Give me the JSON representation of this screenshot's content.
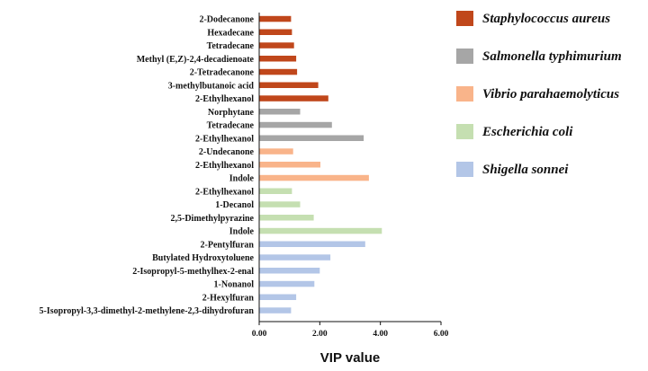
{
  "chart_data": {
    "type": "bar",
    "orientation": "horizontal",
    "xlabel": "VIP value",
    "ylabel": "",
    "title": "",
    "xlim": [
      0,
      6
    ],
    "xticks": [
      0,
      2,
      4,
      6
    ],
    "xtick_labels": [
      "0.00",
      "2.00",
      "4.00",
      "6.00"
    ],
    "grid": false,
    "legend_position": "right",
    "groups": [
      {
        "name": "Staphylococcus aureus",
        "color": "#C0471B",
        "categories": [
          "2-Dodecanone",
          "Hexadecane",
          "Tetradecane",
          "Methyl (E,Z)-2,4-decadienoate",
          "2-Tetradecanone",
          "3-methylbutanoic acid",
          "2-Ethylhexanol"
        ],
        "values": [
          1.05,
          1.08,
          1.15,
          1.22,
          1.25,
          1.95,
          2.28
        ]
      },
      {
        "name": "Salmonella typhimurium",
        "color": "#A6A6A6",
        "categories": [
          "Norphytane",
          "Tetradecane",
          "2-Ethylhexanol"
        ],
        "values": [
          1.35,
          2.4,
          3.45
        ]
      },
      {
        "name": "Vibrio parahaemolyticus",
        "color": "#F9B48A",
        "categories": [
          "2-Undecanone",
          "2-Ethylhexanol",
          "Indole"
        ],
        "values": [
          1.12,
          2.02,
          3.62
        ]
      },
      {
        "name": "Escherichia coli",
        "color": "#C5DFB1",
        "categories": [
          "2-Ethylhexanol",
          "1-Decanol",
          "2,5-Dimethylpyrazine",
          "Indole"
        ],
        "values": [
          1.08,
          1.35,
          1.8,
          4.05
        ]
      },
      {
        "name": "Shigella sonnei",
        "color": "#B3C6E7",
        "categories": [
          "2-Pentylfuran",
          "Butylated Hydroxytoluene",
          "2-Isopropyl-5-methylhex-2-enal",
          "1-Nonanol",
          "2-Hexylfuran",
          "5-Isopropyl-3,3-dimethyl-2-methylene-2,3-dihydrofuran"
        ],
        "values": [
          3.5,
          2.35,
          2.0,
          1.82,
          1.22,
          1.05
        ]
      }
    ]
  }
}
